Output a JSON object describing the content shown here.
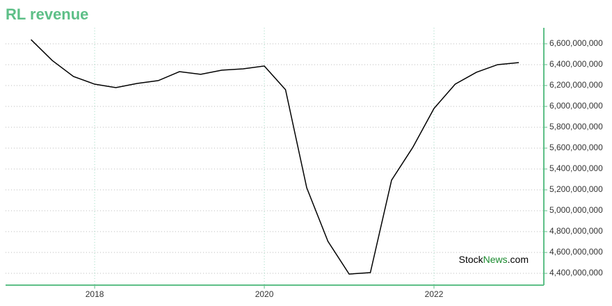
{
  "chart_data": {
    "type": "line",
    "title": "RL revenue",
    "x": [
      2017.25,
      2017.5,
      2017.75,
      2018,
      2018.25,
      2018.5,
      2018.75,
      2019,
      2019.25,
      2019.5,
      2019.75,
      2020,
      2020.25,
      2020.5,
      2020.75,
      2021,
      2021.25,
      2021.5,
      2021.75,
      2022,
      2022.25,
      2022.5,
      2022.75,
      2023
    ],
    "series": [
      {
        "color": "#000000",
        "values": [
          6640000000,
          6440000000,
          6287000000,
          6213000000,
          6180000000,
          6220000000,
          6247000000,
          6333000000,
          6307000000,
          6347000000,
          6360000000,
          6387000000,
          6160000000,
          5220000000,
          4707000000,
          4393000000,
          4407000000,
          5293000000,
          5607000000,
          5980000000,
          6213000000,
          6327000000,
          6400000000,
          6420000000
        ]
      }
    ],
    "xlim": [
      2016.95,
      2023.295
    ],
    "xticks": [
      2018,
      2020,
      2022
    ],
    "ylim": [
      4287000000,
      6753000000
    ],
    "yticks": [
      {
        "value": 4400000000,
        "label": "4,400,000,000"
      },
      {
        "value": 4600000000,
        "label": "4,600,000,000"
      },
      {
        "value": 4800000000,
        "label": "4,800,000,000"
      },
      {
        "value": 5000000000,
        "label": "5,000,000,000"
      },
      {
        "value": 5200000000,
        "label": "5,200,000,000"
      },
      {
        "value": 5400000000,
        "label": "5,400,000,000"
      },
      {
        "value": 5600000000,
        "label": "5,600,000,000"
      },
      {
        "value": 5800000000,
        "label": "5,800,000,000"
      },
      {
        "value": 6000000000,
        "label": "6,000,000,000"
      },
      {
        "value": 6200000000,
        "label": "6,200,000,000"
      },
      {
        "value": 6400000000,
        "label": "6,400,000,000"
      },
      {
        "value": 6600000000,
        "label": "6,600,000,000"
      }
    ],
    "grid": true,
    "axis_color": "#5dbf87",
    "watermark": [
      "Stock",
      "News",
      ".com"
    ]
  }
}
